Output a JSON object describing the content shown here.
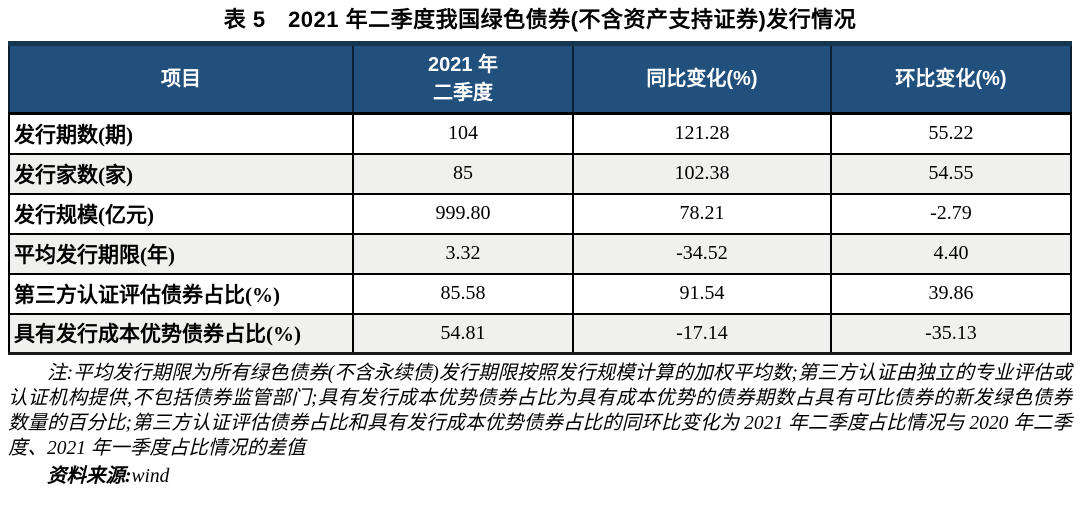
{
  "title": "表 5　2021 年二季度我国绿色债券(不含资产支持证券)发行情况",
  "table": {
    "columns": [
      "项目",
      "2021 年\n二季度",
      "同比变化(%)",
      "环比变化(%)"
    ],
    "rows": [
      {
        "label": "发行期数(期)",
        "values": [
          "104",
          "121.28",
          "55.22"
        ]
      },
      {
        "label": "发行家数(家)",
        "values": [
          "85",
          "102.38",
          "54.55"
        ]
      },
      {
        "label": "发行规模(亿元)",
        "values": [
          "999.80",
          "78.21",
          "-2.79"
        ]
      },
      {
        "label": "平均发行期限(年)",
        "values": [
          "3.32",
          "-34.52",
          "4.40"
        ]
      },
      {
        "label": "第三方认证评估债券占比(%)",
        "values": [
          "85.58",
          "91.54",
          "39.86"
        ]
      },
      {
        "label": "具有发行成本优势债券占比(%)",
        "values": [
          "54.81",
          "-17.14",
          "-35.13"
        ]
      }
    ]
  },
  "notes": {
    "text": "注:平均发行期限为所有绿色债券(不含永续债)发行期限按照发行规模计算的加权平均数;第三方认证由独立的专业评估或认证机构提供,不包括债券监管部门;具有发行成本优势债券占比为具有成本优势的债券期数占具有可比债券的新发绿色债券数量的百分比;第三方认证评估债券占比和具有发行成本优势债券占比的同环比变化为 2021 年二季度占比情况与 2020 年二季度、2021 年一季度占比情况的差值",
    "source_label": "资料来源:",
    "source_value": "wind"
  },
  "colors": {
    "header_bg": "#22507D",
    "header_top_border": "#16354F",
    "stripe_bg": "#F0F0EF",
    "header_text": "#FFFFFF",
    "body_text": "#000000"
  }
}
